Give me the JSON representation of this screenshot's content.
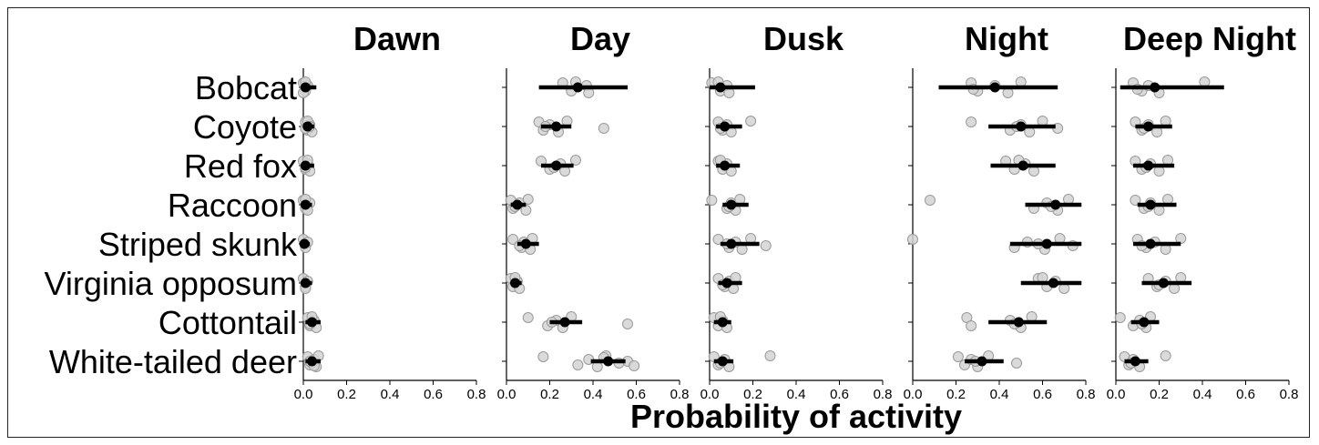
{
  "chart_data": {
    "type": "scatter",
    "xlabel": "Probability of activity",
    "xlim": [
      0.0,
      0.8
    ],
    "xticks": [
      "0.0",
      "0.2",
      "0.4",
      "0.6",
      "0.8"
    ],
    "species": [
      "Bobcat",
      "Coyote",
      "Red fox",
      "Raccoon",
      "Striped skunk",
      "Virginia opposum",
      "Cottontail",
      "White-tailed deer"
    ],
    "colors": {
      "point": "#d3d3d3",
      "point_edge": "#9a9a9a",
      "estimate": "#000000",
      "axis": "#000000"
    },
    "panels": [
      {
        "title": "Dawn",
        "estimates": [
          {
            "mean": 0.01,
            "low": 0.0,
            "high": 0.06,
            "points": [
              0.0,
              0.01,
              0.02,
              0.0,
              0.01
            ]
          },
          {
            "mean": 0.02,
            "low": 0.0,
            "high": 0.05,
            "points": [
              0.01,
              0.02,
              0.03,
              0.04,
              0.02,
              0.01,
              0.03
            ]
          },
          {
            "mean": 0.01,
            "low": 0.0,
            "high": 0.05,
            "points": [
              0.0,
              0.01,
              0.02,
              0.03,
              0.02,
              0.01
            ]
          },
          {
            "mean": 0.01,
            "low": 0.0,
            "high": 0.04,
            "points": [
              0.0,
              0.01,
              0.03,
              0.02,
              0.01
            ]
          },
          {
            "mean": 0.005,
            "low": 0.0,
            "high": 0.03,
            "points": [
              0.0,
              0.01,
              0.02
            ]
          },
          {
            "mean": 0.01,
            "low": 0.0,
            "high": 0.04,
            "points": [
              0.0,
              0.01,
              0.02,
              0.01
            ]
          },
          {
            "mean": 0.04,
            "low": 0.01,
            "high": 0.08,
            "points": [
              0.02,
              0.03,
              0.05,
              0.06,
              0.04,
              0.03
            ]
          },
          {
            "mean": 0.04,
            "low": 0.01,
            "high": 0.08,
            "points": [
              0.02,
              0.03,
              0.05,
              0.06,
              0.07,
              0.04,
              0.03,
              0.05
            ]
          }
        ]
      },
      {
        "title": "Day",
        "estimates": [
          {
            "mean": 0.33,
            "low": 0.15,
            "high": 0.56,
            "points": [
              0.26,
              0.3,
              0.37,
              0.38,
              0.32
            ]
          },
          {
            "mean": 0.23,
            "low": 0.16,
            "high": 0.3,
            "points": [
              0.15,
              0.17,
              0.2,
              0.24,
              0.28,
              0.45,
              0.18
            ]
          },
          {
            "mean": 0.23,
            "low": 0.16,
            "high": 0.31,
            "points": [
              0.16,
              0.2,
              0.25,
              0.27,
              0.32,
              0.22
            ]
          },
          {
            "mean": 0.05,
            "low": 0.02,
            "high": 0.09,
            "points": [
              0.02,
              0.03,
              0.06,
              0.09,
              0.1,
              0.04
            ]
          },
          {
            "mean": 0.09,
            "low": 0.05,
            "high": 0.15,
            "points": [
              0.03,
              0.07,
              0.08,
              0.11,
              0.12,
              0.06
            ]
          },
          {
            "mean": 0.04,
            "low": 0.02,
            "high": 0.07,
            "points": [
              0.02,
              0.03,
              0.05,
              0.06,
              0.04
            ]
          },
          {
            "mean": 0.27,
            "low": 0.2,
            "high": 0.35,
            "points": [
              0.1,
              0.19,
              0.23,
              0.26,
              0.3,
              0.56,
              0.21
            ]
          },
          {
            "mean": 0.47,
            "low": 0.39,
            "high": 0.55,
            "points": [
              0.17,
              0.33,
              0.38,
              0.42,
              0.46,
              0.52,
              0.56,
              0.59,
              0.45
            ]
          }
        ]
      },
      {
        "title": "Dusk",
        "estimates": [
          {
            "mean": 0.05,
            "low": 0.0,
            "high": 0.21,
            "points": [
              0.01,
              0.05,
              0.08,
              0.09,
              0.04
            ]
          },
          {
            "mean": 0.07,
            "low": 0.03,
            "high": 0.15,
            "points": [
              0.04,
              0.06,
              0.08,
              0.1,
              0.19,
              0.05
            ]
          },
          {
            "mean": 0.07,
            "low": 0.03,
            "high": 0.14,
            "points": [
              0.04,
              0.06,
              0.08,
              0.1,
              0.05
            ]
          },
          {
            "mean": 0.1,
            "low": 0.06,
            "high": 0.18,
            "points": [
              0.01,
              0.08,
              0.1,
              0.12,
              0.14,
              0.09
            ]
          },
          {
            "mean": 0.1,
            "low": 0.05,
            "high": 0.23,
            "points": [
              0.04,
              0.09,
              0.12,
              0.15,
              0.19,
              0.26,
              0.08
            ]
          },
          {
            "mean": 0.08,
            "low": 0.04,
            "high": 0.15,
            "points": [
              0.04,
              0.07,
              0.09,
              0.11,
              0.12,
              0.06
            ]
          },
          {
            "mean": 0.06,
            "low": 0.02,
            "high": 0.1,
            "points": [
              0.02,
              0.04,
              0.06,
              0.08,
              0.05
            ]
          },
          {
            "mean": 0.06,
            "low": 0.02,
            "high": 0.11,
            "points": [
              0.02,
              0.04,
              0.07,
              0.09,
              0.28,
              0.05
            ]
          }
        ]
      },
      {
        "title": "Night",
        "estimates": [
          {
            "mean": 0.38,
            "low": 0.12,
            "high": 0.67,
            "points": [
              0.27,
              0.3,
              0.38,
              0.44,
              0.5,
              0.28
            ]
          },
          {
            "mean": 0.5,
            "low": 0.35,
            "high": 0.66,
            "points": [
              0.27,
              0.45,
              0.5,
              0.54,
              0.6,
              0.67,
              0.48
            ]
          },
          {
            "mean": 0.51,
            "low": 0.36,
            "high": 0.66,
            "points": [
              0.43,
              0.47,
              0.52,
              0.56,
              0.49
            ]
          },
          {
            "mean": 0.66,
            "low": 0.52,
            "high": 0.78,
            "points": [
              0.08,
              0.56,
              0.62,
              0.67,
              0.72,
              0.64
            ]
          },
          {
            "mean": 0.62,
            "low": 0.45,
            "high": 0.78,
            "points": [
              0.0,
              0.47,
              0.53,
              0.61,
              0.68,
              0.74,
              0.58
            ]
          },
          {
            "mean": 0.65,
            "low": 0.5,
            "high": 0.78,
            "points": [
              0.58,
              0.62,
              0.66,
              0.7,
              0.6
            ]
          },
          {
            "mean": 0.49,
            "low": 0.35,
            "high": 0.62,
            "points": [
              0.25,
              0.27,
              0.45,
              0.5,
              0.55,
              0.47
            ]
          },
          {
            "mean": 0.32,
            "low": 0.24,
            "high": 0.42,
            "points": [
              0.21,
              0.24,
              0.27,
              0.3,
              0.35,
              0.48,
              0.29
            ]
          }
        ]
      },
      {
        "title": "Deep Night",
        "estimates": [
          {
            "mean": 0.18,
            "low": 0.02,
            "high": 0.5,
            "points": [
              0.08,
              0.12,
              0.15,
              0.2,
              0.41,
              0.1
            ]
          },
          {
            "mean": 0.15,
            "low": 0.09,
            "high": 0.26,
            "points": [
              0.09,
              0.12,
              0.15,
              0.19,
              0.23,
              0.13
            ]
          },
          {
            "mean": 0.15,
            "low": 0.08,
            "high": 0.27,
            "points": [
              0.09,
              0.12,
              0.16,
              0.2,
              0.24,
              0.14
            ]
          },
          {
            "mean": 0.16,
            "low": 0.1,
            "high": 0.28,
            "points": [
              0.09,
              0.13,
              0.16,
              0.2,
              0.24,
              0.15
            ]
          },
          {
            "mean": 0.16,
            "low": 0.08,
            "high": 0.3,
            "points": [
              0.1,
              0.14,
              0.18,
              0.23,
              0.3,
              0.12
            ]
          },
          {
            "mean": 0.22,
            "low": 0.12,
            "high": 0.35,
            "points": [
              0.15,
              0.19,
              0.23,
              0.27,
              0.3,
              0.2
            ]
          },
          {
            "mean": 0.13,
            "low": 0.07,
            "high": 0.2,
            "points": [
              0.02,
              0.08,
              0.11,
              0.14,
              0.16,
              0.12
            ]
          },
          {
            "mean": 0.09,
            "low": 0.04,
            "high": 0.15,
            "points": [
              0.04,
              0.06,
              0.08,
              0.11,
              0.23,
              0.07
            ]
          }
        ]
      }
    ]
  }
}
